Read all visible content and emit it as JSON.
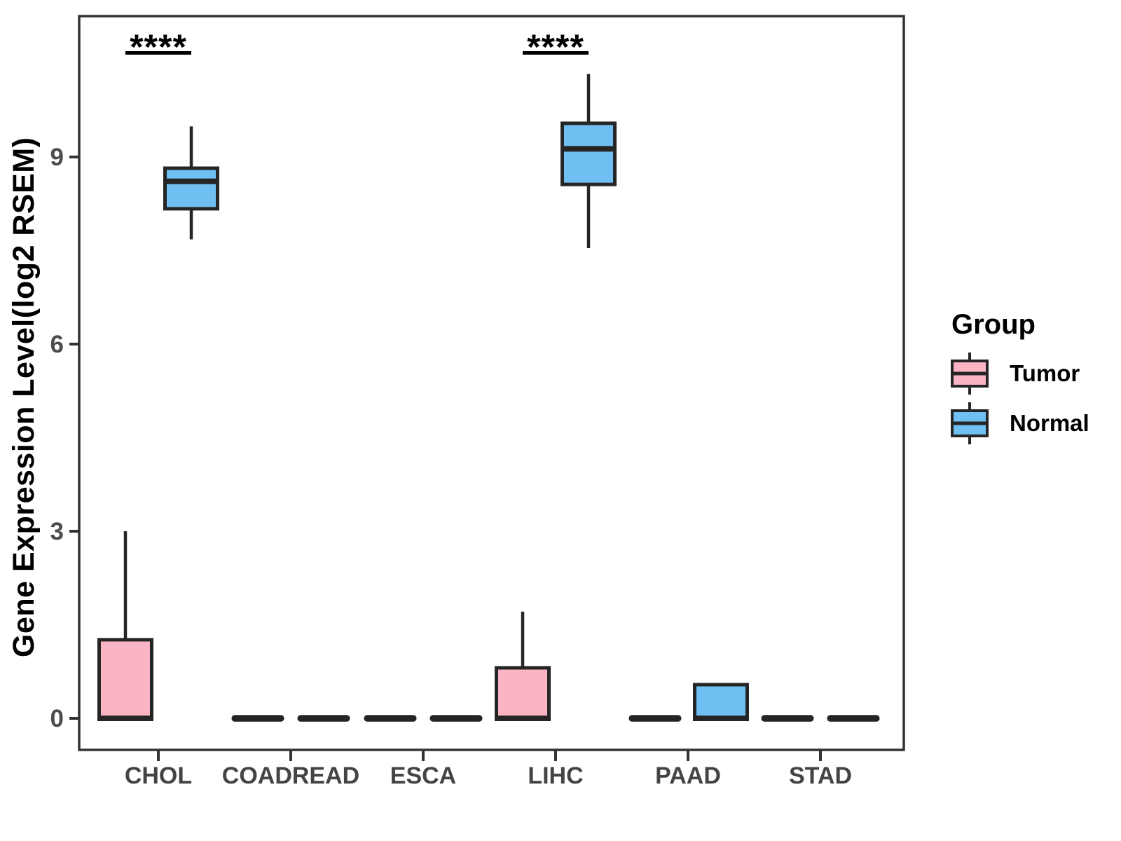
{
  "chart_data": {
    "type": "boxplot",
    "title": "",
    "xlabel": "",
    "ylabel": "Gene Expression Level(log2 RSEM)",
    "categories": [
      "CHOL",
      "COADREAD",
      "ESCA",
      "LIHC",
      "PAAD",
      "STAD"
    ],
    "groups": [
      "Tumor",
      "Normal"
    ],
    "yticks": [
      0,
      3,
      6,
      9
    ],
    "ylim": [
      -0.5,
      11.3
    ],
    "grid": "off",
    "colors": {
      "tumor": "#FAB4C3",
      "normal": "#70BFF2",
      "box_stroke": "#252525",
      "axis": "#333333",
      "tick_label": "#4d4d4d",
      "category_label": "#444444",
      "annotation": "#000000"
    },
    "series": [
      {
        "category": "CHOL",
        "group": "Tumor",
        "min": 0,
        "q1": 0,
        "median": 0,
        "q3": 1.26,
        "max": 3.0
      },
      {
        "category": "CHOL",
        "group": "Normal",
        "min": 7.68,
        "q1": 8.17,
        "median": 8.61,
        "q3": 8.82,
        "max": 9.49
      },
      {
        "category": "COADREAD",
        "group": "Tumor",
        "min": 0,
        "q1": 0,
        "median": 0,
        "q3": 0,
        "max": 0
      },
      {
        "category": "COADREAD",
        "group": "Normal",
        "min": 0,
        "q1": 0,
        "median": 0,
        "q3": 0,
        "max": 0
      },
      {
        "category": "ESCA",
        "group": "Tumor",
        "min": 0,
        "q1": 0,
        "median": 0,
        "q3": 0,
        "max": 0
      },
      {
        "category": "ESCA",
        "group": "Normal",
        "min": 0,
        "q1": 0,
        "median": 0,
        "q3": 0,
        "max": 0
      },
      {
        "category": "LIHC",
        "group": "Tumor",
        "min": 0,
        "q1": 0,
        "median": 0,
        "q3": 0.81,
        "max": 1.71
      },
      {
        "category": "LIHC",
        "group": "Normal",
        "min": 7.54,
        "q1": 8.56,
        "median": 9.13,
        "q3": 9.54,
        "max": 10.33
      },
      {
        "category": "PAAD",
        "group": "Tumor",
        "min": 0,
        "q1": 0,
        "median": 0,
        "q3": 0,
        "max": 0
      },
      {
        "category": "PAAD",
        "group": "Normal",
        "min": 0,
        "q1": 0,
        "median": 0,
        "q3": 0.54,
        "max": 0.54
      },
      {
        "category": "STAD",
        "group": "Tumor",
        "min": 0,
        "q1": 0,
        "median": 0,
        "q3": 0,
        "max": 0
      },
      {
        "category": "STAD",
        "group": "Normal",
        "min": 0,
        "q1": 0,
        "median": 0,
        "q3": 0,
        "max": 0
      }
    ],
    "annotations": [
      {
        "category": "CHOL",
        "label": "****"
      },
      {
        "category": "LIHC",
        "label": "****"
      }
    ],
    "legend": {
      "title": "Group",
      "position": "right",
      "items": [
        {
          "label": "Tumor",
          "color": "#FAB4C3"
        },
        {
          "label": "Normal",
          "color": "#70BFF2"
        }
      ]
    }
  }
}
